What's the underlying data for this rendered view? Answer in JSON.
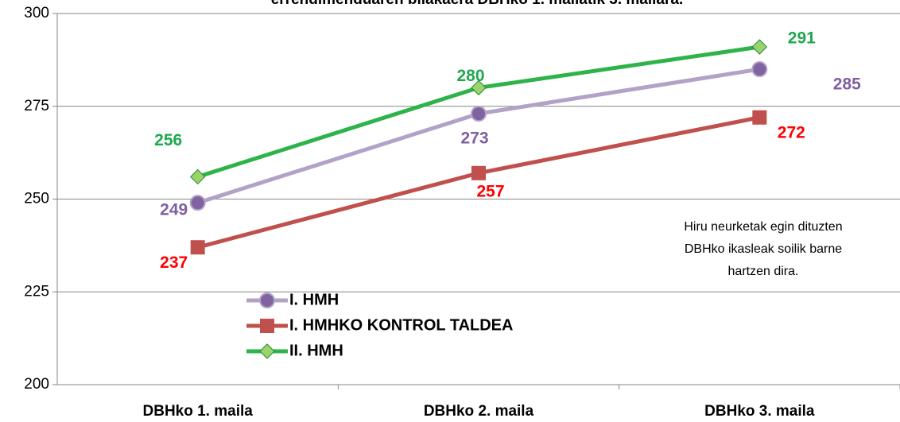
{
  "chart_data": {
    "type": "line",
    "title": "errendimenduaren  bilakaera DBHko 1. mailatik 3. mailara.",
    "categories": [
      "DBHko 1. maila",
      "DBHko 2. maila",
      "DBHko 3. maila"
    ],
    "series": [
      {
        "name": "I. HMH",
        "color": "#b3a2c7",
        "label_color": "#7f5fa0",
        "marker": "circle",
        "values": [
          249,
          273,
          285
        ]
      },
      {
        "name": "I. HMHKO KONTROL TALDEA",
        "color": "#c0504d",
        "label_color": "#ff0000",
        "marker": "square",
        "values": [
          237,
          257,
          272
        ]
      },
      {
        "name": "II. HMH",
        "color": "#2db34a",
        "label_color": "#1fa84f",
        "marker": "diamond",
        "values": [
          256,
          280,
          291
        ]
      }
    ],
    "ylim": [
      200,
      300
    ],
    "yticks": [
      200,
      225,
      250,
      275,
      300
    ],
    "grid": true,
    "annotation": [
      "Hiru neurketak egin dituzten",
      "DBHko ikasleak soilik barne",
      "hartzen dira."
    ]
  }
}
